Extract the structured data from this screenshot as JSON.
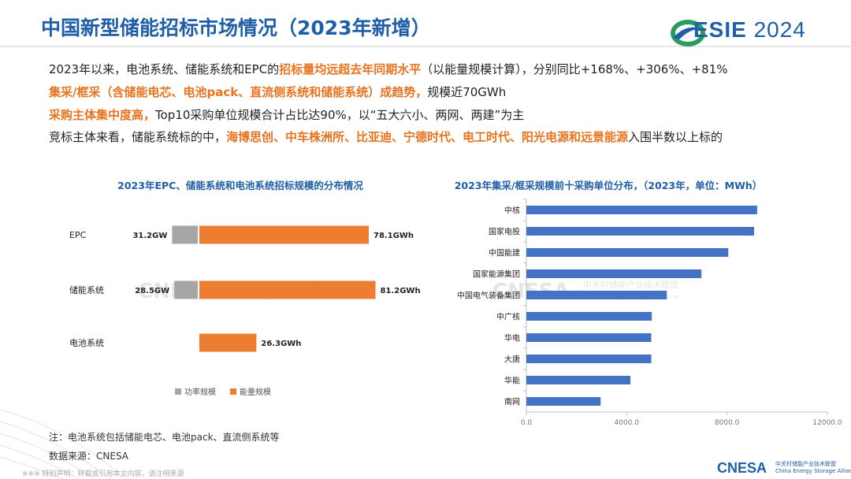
{
  "header": {
    "title": "中国新型储能招标市场情况（2023年新增）",
    "logo_brand": "ESIE",
    "logo_year": "2024"
  },
  "paragraphs": {
    "p1": {
      "a": "2023年以来，电池系统、储能系统和EPC的",
      "b": "招标量均远超去年同期水平",
      "c": "（以能量规模计算），分别同比+168%、+306%、+81%"
    },
    "p2": {
      "a": "集采/框采（含储能电芯、电池pack、直流侧系统和储能系统）成趋势，",
      "b": "规模近70GWh"
    },
    "p3": {
      "a": "采购主体集中度高，",
      "b": "Top10采购单位规模合计占比达90%，以“五大六小、两网、两建”为主"
    },
    "p4": {
      "a": "竞标主体来看，储能系统标的中，",
      "b": "海博思创、中车株洲所、比亚迪、宁德时代、电工时代、阳光电源和远景能源",
      "c": "入围半数以上标的"
    }
  },
  "watermark": {
    "brand": "CNESA",
    "cn": "中关村储能产业技术联盟",
    "en": "China Energy Storage Alliance"
  },
  "notes": {
    "note1": "注：电池系统包括储能电芯、电池pack、直流侧系统等",
    "note2": "数据来源：CNESA"
  },
  "copyright": "※※※ 特别声明：转载或引用本文内容，请注明来源",
  "footer": {
    "brand": "CNESA",
    "cn": "中关村储能产业技术联盟",
    "en": "China Energy Storage Alliance"
  },
  "colors": {
    "title": "#1f5fa8",
    "highlight": "#e8731f",
    "power": "#a6a6a6",
    "energy": "#ed7d31",
    "bar_blue": "#4472c4"
  },
  "chart_data": [
    {
      "type": "bar",
      "orientation": "horizontal",
      "title": "2023年EPC、储能系统和电池系统招标规模的分布情况",
      "categories": [
        "EPC",
        "储能系统",
        "电池系统"
      ],
      "series": [
        {
          "name": "功率规模",
          "unit": "GW",
          "values": [
            31.2,
            28.5,
            null
          ],
          "labels": [
            "31.2GW",
            "28.5GW",
            ""
          ]
        },
        {
          "name": "能量规模",
          "unit": "GWh",
          "values": [
            78.1,
            81.2,
            26.3
          ],
          "labels": [
            "78.1GWh",
            "81.2GWh",
            "26.3GWh"
          ]
        }
      ],
      "legend": "bottom",
      "grid": false
    },
    {
      "type": "bar",
      "orientation": "horizontal",
      "title": "2023年集采/框采规模前十采购单位分布，（2023年，单位：MWh）",
      "categories": [
        "中核",
        "国家电投",
        "中国能建",
        "国家能源集团",
        "中国电气装备集团",
        "中广核",
        "华电",
        "大唐",
        "华能",
        "南网"
      ],
      "values": [
        9200,
        9080,
        8050,
        6980,
        5600,
        5000,
        4980,
        4980,
        4150,
        2960
      ],
      "xlim": [
        0,
        12000
      ],
      "xticks": [
        "0.0",
        "4000.0",
        "8000.0",
        "12000.0"
      ],
      "grid": false
    }
  ]
}
